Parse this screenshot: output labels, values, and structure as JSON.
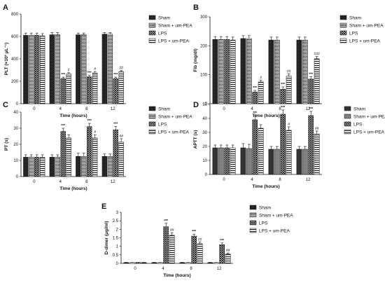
{
  "chart_data": [
    {
      "panel": "A",
      "type": "bar",
      "categories": [
        "0",
        "4",
        "8",
        "12"
      ],
      "xlabel": "Time (hours)",
      "ylabel": "PLT (×10³ μL⁻¹)",
      "ylim": [
        0,
        800
      ],
      "yticks": [
        0,
        200,
        400,
        600,
        800
      ],
      "legend_position": "right",
      "series": [
        {
          "name": "Sham",
          "values": [
            610,
            615,
            615,
            620
          ],
          "errors": [
            20,
            20,
            15,
            15
          ],
          "labels": [
            "",
            "",
            "",
            ""
          ]
        },
        {
          "name": "Sham + um-PEA",
          "values": [
            610,
            615,
            615,
            620
          ],
          "errors": [
            20,
            20,
            15,
            15
          ],
          "labels": [
            "",
            "",
            "",
            ""
          ]
        },
        {
          "name": "LPS",
          "values": [
            610,
            225,
            240,
            225
          ],
          "errors": [
            20,
            12,
            12,
            12
          ],
          "labels": [
            "",
            "***",
            "***",
            "***"
          ]
        },
        {
          "name": "LPS + um-PEA",
          "values": [
            605,
            265,
            275,
            285
          ],
          "errors": [
            20,
            12,
            12,
            12
          ],
          "labels": [
            "",
            "#",
            "#",
            "##"
          ]
        }
      ]
    },
    {
      "panel": "B",
      "type": "bar",
      "categories": [
        "0",
        "4",
        "8",
        "12"
      ],
      "xlabel": "Time (hours)",
      "ylabel": "Fib (mg/dl)",
      "ylim": [
        0,
        300
      ],
      "yticks": [
        0,
        100,
        200,
        300
      ],
      "legend_position": "right",
      "series": [
        {
          "name": "Sham",
          "values": [
            222,
            225,
            220,
            220
          ],
          "errors": [
            10,
            10,
            10,
            10
          ],
          "labels": [
            "",
            "",
            "",
            ""
          ]
        },
        {
          "name": "Sham + um-PEA",
          "values": [
            222,
            225,
            220,
            220
          ],
          "errors": [
            10,
            10,
            10,
            10
          ],
          "labels": [
            "",
            "",
            "",
            ""
          ]
        },
        {
          "name": "LPS",
          "values": [
            222,
            40,
            50,
            85
          ],
          "errors": [
            10,
            6,
            8,
            8
          ],
          "labels": [
            "",
            "***",
            "***",
            "***"
          ]
        },
        {
          "name": "LPS + um-PEA",
          "values": [
            220,
            75,
            95,
            155
          ],
          "errors": [
            10,
            6,
            8,
            8
          ],
          "labels": [
            "",
            "#",
            "##",
            "###"
          ]
        }
      ]
    },
    {
      "panel": "C",
      "type": "bar",
      "categories": [
        "0",
        "4",
        "8",
        "12"
      ],
      "xlabel": "Time (hours)",
      "ylabel": "PT (s)",
      "ylim": [
        0,
        40
      ],
      "yticks": [
        0,
        10,
        20,
        30,
        40
      ],
      "legend_position": "right",
      "series": [
        {
          "name": "Sham",
          "values": [
            12,
            12,
            12.5,
            12.5
          ],
          "errors": [
            1.5,
            1.5,
            2,
            1.5
          ],
          "labels": [
            "",
            "",
            "",
            ""
          ]
        },
        {
          "name": "Sham + um-PEA",
          "values": [
            12,
            12,
            12.5,
            12.5
          ],
          "errors": [
            1.5,
            1.5,
            2,
            1.5
          ],
          "labels": [
            "",
            "",
            "",
            ""
          ]
        },
        {
          "name": "LPS",
          "values": [
            12,
            28,
            31,
            29
          ],
          "errors": [
            1.5,
            2,
            2,
            2
          ],
          "labels": [
            "",
            "***",
            "***",
            "***"
          ]
        },
        {
          "name": "LPS + um-PEA",
          "values": [
            12,
            24,
            24,
            21.5
          ],
          "errors": [
            1.5,
            2,
            2,
            2
          ],
          "labels": [
            "",
            "",
            "#",
            "##"
          ]
        }
      ]
    },
    {
      "panel": "D",
      "type": "bar",
      "categories": [
        "0",
        "4",
        "8",
        "12"
      ],
      "xlabel": "Time (hours)",
      "ylabel": "APTT (s)",
      "ylim": [
        0,
        50
      ],
      "yticks": [
        0,
        10,
        20,
        30,
        40,
        50
      ],
      "legend_position": "right",
      "series": [
        {
          "name": "Sham",
          "values": [
            19,
            19,
            18,
            18
          ],
          "errors": [
            2,
            3,
            2,
            2
          ],
          "labels": [
            "",
            "",
            "",
            ""
          ]
        },
        {
          "name": "Sham + um-PEA",
          "values": [
            19,
            18.5,
            18,
            18
          ],
          "errors": [
            2,
            3,
            2,
            2
          ],
          "labels": [
            "",
            "",
            "",
            ""
          ]
        },
        {
          "name": "LPS",
          "values": [
            19,
            39,
            43,
            42
          ],
          "errors": [
            2,
            3,
            3,
            3
          ],
          "labels": [
            "",
            "***",
            "***",
            "***"
          ]
        },
        {
          "name": "LPS + um-PEA",
          "values": [
            19,
            33,
            31.5,
            29
          ],
          "errors": [
            2,
            2.5,
            2.5,
            2
          ],
          "labels": [
            "",
            "",
            "#",
            "##"
          ]
        }
      ]
    },
    {
      "panel": "E",
      "type": "bar",
      "categories": [
        "0",
        "4",
        "8",
        "12"
      ],
      "xlabel": "Time (hours)",
      "ylabel": "D-dimer (μg/ml)",
      "ylim": [
        0,
        3
      ],
      "yticks": [
        0,
        0.5,
        1,
        1.5,
        2,
        2.5,
        3
      ],
      "legend_position": "right",
      "series": [
        {
          "name": "Sham",
          "values": [
            0.05,
            0.05,
            0.05,
            0.05
          ],
          "errors": [
            0.01,
            0.01,
            0.01,
            0.01
          ],
          "labels": [
            "",
            "",
            "",
            ""
          ]
        },
        {
          "name": "Sham + um-PEA",
          "values": [
            0.05,
            0.05,
            0.05,
            0.05
          ],
          "errors": [
            0.01,
            0.01,
            0.01,
            0.01
          ],
          "labels": [
            "",
            "",
            "",
            ""
          ]
        },
        {
          "name": "LPS",
          "values": [
            0.05,
            2.15,
            1.6,
            1.1
          ],
          "errors": [
            0.01,
            0.2,
            0.12,
            0.1
          ],
          "labels": [
            "",
            "***",
            "***",
            "***"
          ]
        },
        {
          "name": "LPS + um-PEA",
          "values": [
            0.05,
            1.65,
            1.15,
            0.55
          ],
          "errors": [
            0.01,
            0.15,
            0.1,
            0.06
          ],
          "labels": [
            "",
            "##",
            "##",
            "##"
          ]
        }
      ]
    }
  ]
}
